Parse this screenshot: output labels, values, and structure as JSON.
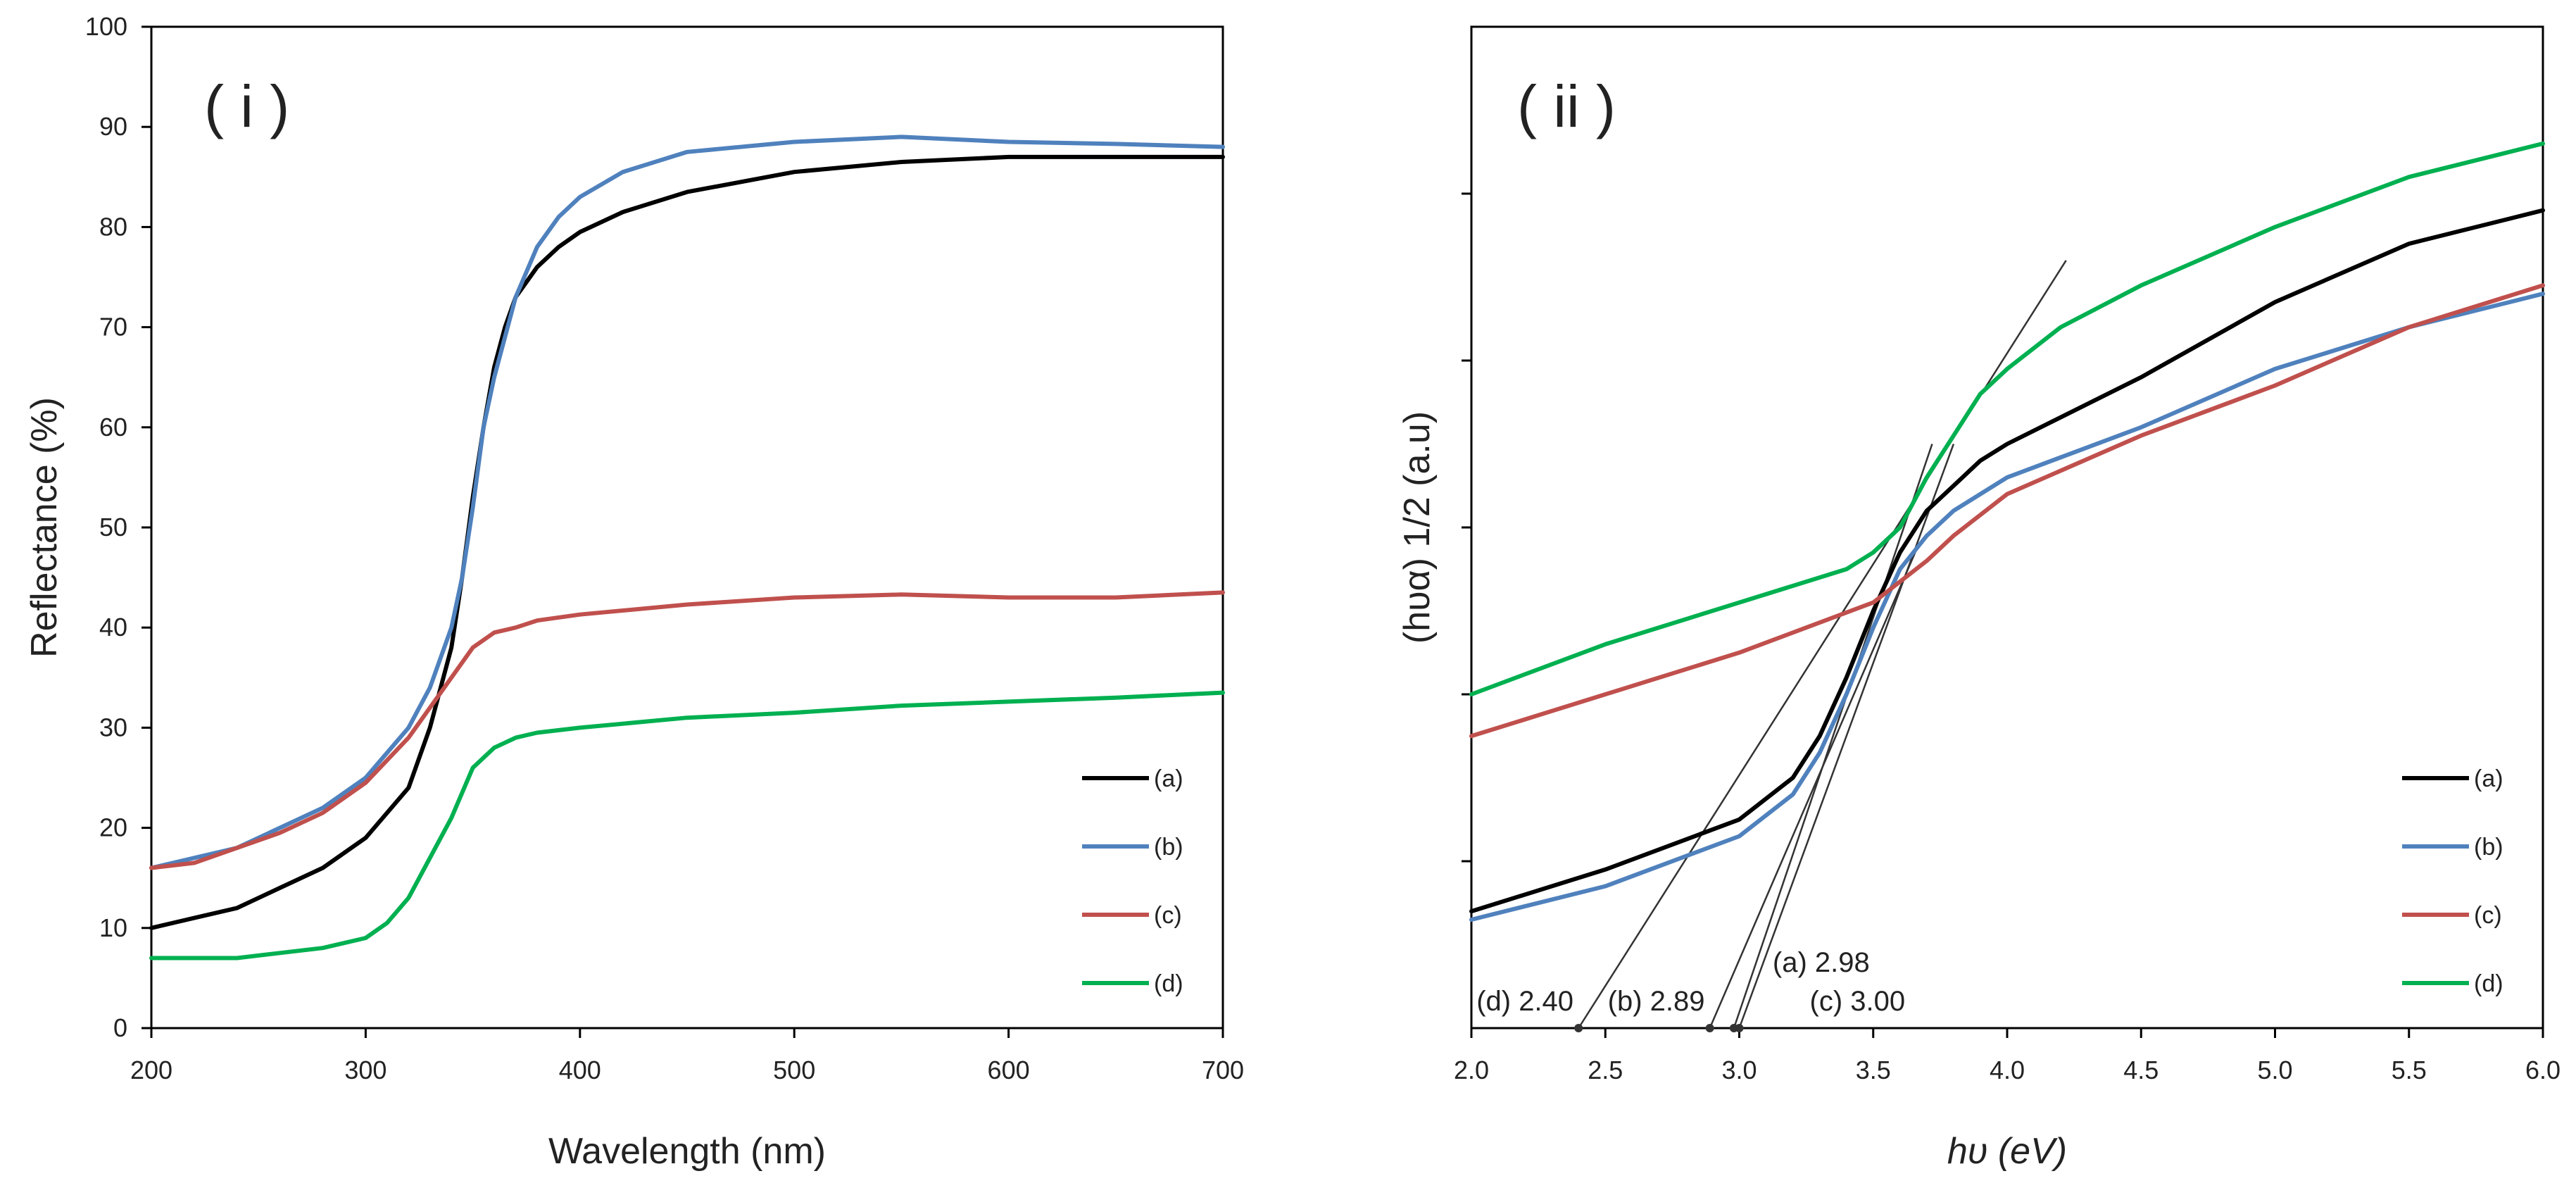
{
  "colors": {
    "a": "#000000",
    "b": "#4f81bd",
    "c": "#c0504d",
    "d": "#00b050",
    "axis": "#000000",
    "guide": "#333333"
  },
  "chart_data": [
    {
      "type": "line",
      "panel_label": "( i )",
      "xlabel": "Wavelength (nm)",
      "ylabel": "Reflectance (%)",
      "xlim": [
        200,
        700
      ],
      "ylim": [
        0,
        100
      ],
      "xticks": [
        200,
        300,
        400,
        500,
        600,
        700
      ],
      "xtick_labels": [
        "200",
        "300",
        "400",
        "500",
        "600",
        "700"
      ],
      "yticks": [
        0,
        10,
        20,
        30,
        40,
        50,
        60,
        70,
        80,
        90,
        100
      ],
      "ytick_labels": [
        "0",
        "10",
        "20",
        "30",
        "40",
        "50",
        "60",
        "70",
        "80",
        "90",
        "100"
      ],
      "grid": false,
      "legend": "bottom-right",
      "series": [
        {
          "name": "(a)",
          "color_key": "a",
          "x": [
            200,
            220,
            240,
            260,
            280,
            300,
            320,
            330,
            340,
            345,
            350,
            355,
            360,
            365,
            370,
            380,
            390,
            400,
            420,
            450,
            500,
            550,
            600,
            650,
            700
          ],
          "y": [
            10,
            11,
            12,
            14,
            16,
            19,
            24,
            30,
            38,
            45,
            53,
            60,
            66,
            70,
            73,
            76,
            78,
            79.5,
            81.5,
            83.5,
            85.5,
            86.5,
            87,
            87,
            87
          ]
        },
        {
          "name": "(b)",
          "color_key": "b",
          "x": [
            200,
            220,
            240,
            260,
            280,
            300,
            320,
            330,
            340,
            345,
            350,
            355,
            360,
            370,
            380,
            390,
            400,
            420,
            450,
            500,
            550,
            600,
            650,
            700
          ],
          "y": [
            16,
            17,
            18,
            20,
            22,
            25,
            30,
            34,
            40,
            45,
            52,
            60,
            65,
            73,
            78,
            81,
            83,
            85.5,
            87.5,
            88.5,
            89,
            88.5,
            88.3,
            88
          ]
        },
        {
          "name": "(c)",
          "color_key": "c",
          "x": [
            200,
            220,
            240,
            260,
            280,
            300,
            320,
            330,
            340,
            350,
            360,
            370,
            380,
            400,
            450,
            500,
            550,
            600,
            650,
            700
          ],
          "y": [
            16,
            16.5,
            18,
            19.5,
            21.5,
            24.5,
            29,
            32,
            35,
            38,
            39.5,
            40,
            40.7,
            41.3,
            42.3,
            43,
            43.3,
            43,
            43,
            43.5
          ]
        },
        {
          "name": "(d)",
          "color_key": "d",
          "x": [
            200,
            220,
            240,
            260,
            280,
            300,
            310,
            320,
            330,
            340,
            350,
            360,
            370,
            380,
            400,
            450,
            500,
            550,
            600,
            650,
            700
          ],
          "y": [
            7,
            7,
            7,
            7.5,
            8,
            9,
            10.5,
            13,
            17,
            21,
            26,
            28,
            29,
            29.5,
            30,
            31,
            31.5,
            32.2,
            32.6,
            33,
            33.5
          ]
        }
      ]
    },
    {
      "type": "line",
      "panel_label": "( ii )",
      "xlabel": "hυ (eV)",
      "ylabel": "(hυα) 1/2  (a.u)",
      "xlim": [
        2.0,
        6.0
      ],
      "ylim": [
        0,
        6
      ],
      "xticks": [
        2.0,
        2.5,
        3.0,
        3.5,
        4.0,
        4.5,
        5.0,
        5.5,
        6.0
      ],
      "xtick_labels": [
        "2.0",
        "2.5",
        "3.0",
        "3.5",
        "4.0",
        "4.5",
        "5.0",
        "5.5",
        "6.0"
      ],
      "yticks": [
        1,
        2,
        3,
        4,
        5
      ],
      "grid": false,
      "legend": "bottom-right",
      "series": [
        {
          "name": "(a)",
          "color_key": "a",
          "x": [
            2.0,
            2.5,
            3.0,
            3.2,
            3.3,
            3.4,
            3.5,
            3.6,
            3.7,
            3.8,
            3.9,
            4.0,
            4.5,
            5.0,
            5.5,
            6.0
          ],
          "y": [
            0.7,
            0.95,
            1.25,
            1.5,
            1.75,
            2.1,
            2.5,
            2.85,
            3.1,
            3.25,
            3.4,
            3.5,
            3.9,
            4.35,
            4.7,
            4.9
          ]
        },
        {
          "name": "(b)",
          "color_key": "b",
          "x": [
            2.0,
            2.5,
            3.0,
            3.2,
            3.3,
            3.4,
            3.5,
            3.6,
            3.7,
            3.8,
            4.0,
            4.5,
            5.0,
            5.5,
            6.0
          ],
          "y": [
            0.65,
            0.85,
            1.15,
            1.4,
            1.65,
            2.0,
            2.4,
            2.75,
            2.95,
            3.1,
            3.3,
            3.6,
            3.95,
            4.2,
            4.4
          ]
        },
        {
          "name": "(c)",
          "color_key": "c",
          "x": [
            2.0,
            2.5,
            3.0,
            3.5,
            3.7,
            3.8,
            4.0,
            4.5,
            5.0,
            5.5,
            6.0
          ],
          "y": [
            1.75,
            2.0,
            2.25,
            2.55,
            2.8,
            2.95,
            3.2,
            3.55,
            3.85,
            4.2,
            4.45
          ]
        },
        {
          "name": "(d)",
          "color_key": "d",
          "x": [
            2.0,
            2.5,
            3.0,
            3.4,
            3.5,
            3.6,
            3.7,
            3.8,
            3.9,
            4.0,
            4.2,
            4.5,
            5.0,
            5.5,
            6.0
          ],
          "y": [
            2.0,
            2.3,
            2.55,
            2.75,
            2.85,
            3.0,
            3.3,
            3.55,
            3.8,
            3.95,
            4.2,
            4.45,
            4.8,
            5.1,
            5.3
          ]
        }
      ],
      "tangent_lines": [
        {
          "label": "(a) 2.98",
          "x": [
            2.98,
            3.72
          ],
          "y": [
            0,
            3.5
          ]
        },
        {
          "label": "(b) 2.89",
          "x": [
            2.89,
            3.67
          ],
          "y": [
            0,
            2.9
          ]
        },
        {
          "label": "(c) 3.00",
          "x": [
            3.0,
            3.8
          ],
          "y": [
            0,
            3.5
          ]
        },
        {
          "label": "(d) 2.40",
          "x": [
            2.4,
            4.22
          ],
          "y": [
            0,
            4.6
          ]
        }
      ]
    }
  ]
}
